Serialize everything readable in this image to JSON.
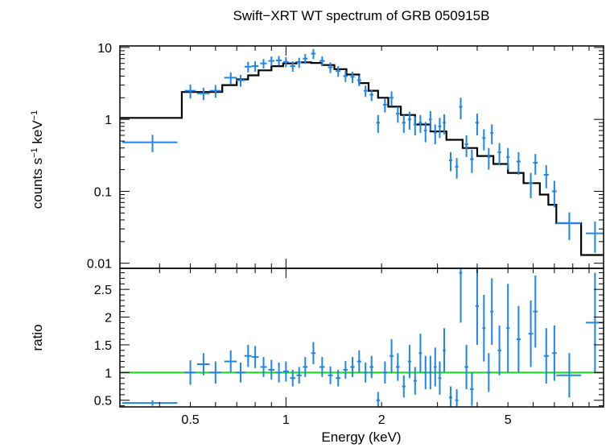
{
  "chart_data": {
    "type": "scatter",
    "title": "Swift−XRT WT spectrum of GRB 050915B",
    "xlabel": "Energy (keV)",
    "x_scale": "log",
    "xlim": [
      0.3,
      10
    ],
    "x_ticks": [
      "0.5",
      "1",
      "2",
      "5"
    ],
    "x_tick_values": [
      0.5,
      1,
      2,
      5
    ],
    "colors": {
      "data": "#1f86e8",
      "model": "#000000",
      "unity": "#22dd22",
      "frame": "#000000"
    },
    "panels": [
      {
        "name": "spectrum",
        "ylabel_main": "counts s",
        "ylabel_exp1": "−1",
        "ylabel_mid": " keV",
        "ylabel_exp2": "−1",
        "y_scale": "log",
        "ylim": [
          0.0085,
          10.5
        ],
        "y_ticks": [
          "0.01",
          "0.1",
          "1",
          "10"
        ],
        "y_tick_values": [
          0.01,
          0.1,
          1,
          10
        ],
        "model_steps": [
          [
            0.3,
            1.05
          ],
          [
            0.47,
            2.4
          ],
          [
            0.56,
            2.4
          ],
          [
            0.63,
            3.0
          ],
          [
            0.7,
            3.6
          ],
          [
            0.76,
            4.1
          ],
          [
            0.82,
            4.8
          ],
          [
            0.9,
            5.5
          ],
          [
            0.98,
            6.0
          ],
          [
            1.08,
            6.2
          ],
          [
            1.2,
            6.1
          ],
          [
            1.3,
            5.7
          ],
          [
            1.42,
            5.0
          ],
          [
            1.55,
            4.2
          ],
          [
            1.7,
            3.2
          ],
          [
            1.82,
            2.5
          ],
          [
            1.95,
            2.0
          ],
          [
            2.1,
            1.5
          ],
          [
            2.3,
            1.15
          ],
          [
            2.55,
            0.85
          ],
          [
            2.85,
            0.68
          ],
          [
            3.2,
            0.52
          ],
          [
            3.6,
            0.4
          ],
          [
            4.0,
            0.31
          ],
          [
            4.5,
            0.24
          ],
          [
            5.0,
            0.18
          ],
          [
            5.6,
            0.13
          ],
          [
            6.3,
            0.09
          ],
          [
            6.7,
            0.065
          ],
          [
            7.1,
            0.036
          ],
          [
            8.5,
            0.013
          ],
          [
            10,
            0.013
          ]
        ],
        "points": [
          [
            0.38,
            0.48,
            0.075,
            0.13
          ],
          [
            0.5,
            2.5,
            0.02,
            0.55
          ],
          [
            0.55,
            2.3,
            0.025,
            0.45
          ],
          [
            0.6,
            2.5,
            0.025,
            0.5
          ],
          [
            0.67,
            3.8,
            0.03,
            0.7
          ],
          [
            0.72,
            3.5,
            0.025,
            0.65
          ],
          [
            0.76,
            5.4,
            0.02,
            0.9
          ],
          [
            0.8,
            5.5,
            0.02,
            0.9
          ],
          [
            0.85,
            6.0,
            0.02,
            0.9
          ],
          [
            0.9,
            6.5,
            0.02,
            1.0
          ],
          [
            0.95,
            6.6,
            0.02,
            1.0
          ],
          [
            1.0,
            6.3,
            0.02,
            1.0
          ],
          [
            1.05,
            5.5,
            0.02,
            0.9
          ],
          [
            1.1,
            6.2,
            0.02,
            1.0
          ],
          [
            1.15,
            7.0,
            0.02,
            1.1
          ],
          [
            1.22,
            8.2,
            0.02,
            1.3
          ],
          [
            1.3,
            6.5,
            0.025,
            1.0
          ],
          [
            1.38,
            5.3,
            0.025,
            0.9
          ],
          [
            1.46,
            4.7,
            0.025,
            0.8
          ],
          [
            1.54,
            4.0,
            0.025,
            0.7
          ],
          [
            1.62,
            3.9,
            0.025,
            0.7
          ],
          [
            1.7,
            3.5,
            0.025,
            0.6
          ],
          [
            1.78,
            2.5,
            0.025,
            0.45
          ],
          [
            1.86,
            2.2,
            0.025,
            0.4
          ],
          [
            1.95,
            0.9,
            0.025,
            0.25
          ],
          [
            2.05,
            1.6,
            0.03,
            0.35
          ],
          [
            2.15,
            2.0,
            0.03,
            0.45
          ],
          [
            2.25,
            1.2,
            0.03,
            0.3
          ],
          [
            2.35,
            0.9,
            0.03,
            0.25
          ],
          [
            2.45,
            1.0,
            0.03,
            0.28
          ],
          [
            2.55,
            0.85,
            0.03,
            0.25
          ],
          [
            2.65,
            0.9,
            0.03,
            0.25
          ],
          [
            2.75,
            0.7,
            0.03,
            0.22
          ],
          [
            2.85,
            1.0,
            0.03,
            0.3
          ],
          [
            2.95,
            0.65,
            0.03,
            0.2
          ],
          [
            3.05,
            0.8,
            0.035,
            0.25
          ],
          [
            3.15,
            0.9,
            0.035,
            0.28
          ],
          [
            3.3,
            0.27,
            0.04,
            0.08
          ],
          [
            3.45,
            0.22,
            0.04,
            0.07
          ],
          [
            3.55,
            1.5,
            0.04,
            0.5
          ],
          [
            3.7,
            0.45,
            0.05,
            0.15
          ],
          [
            3.85,
            0.28,
            0.05,
            0.1
          ],
          [
            4.0,
            0.9,
            0.05,
            0.3
          ],
          [
            4.2,
            0.55,
            0.05,
            0.18
          ],
          [
            4.35,
            0.3,
            0.05,
            0.1
          ],
          [
            4.45,
            0.65,
            0.05,
            0.2
          ],
          [
            4.7,
            0.35,
            0.06,
            0.12
          ],
          [
            5.0,
            0.3,
            0.06,
            0.1
          ],
          [
            5.4,
            0.26,
            0.08,
            0.09
          ],
          [
            5.9,
            0.13,
            0.1,
            0.05
          ],
          [
            6.1,
            0.25,
            0.1,
            0.08
          ],
          [
            6.6,
            0.17,
            0.12,
            0.06
          ],
          [
            7.0,
            0.1,
            0.12,
            0.04
          ],
          [
            7.8,
            0.036,
            0.7,
            0.015
          ],
          [
            9.4,
            0.026,
            0.6,
            0.012
          ]
        ]
      },
      {
        "name": "ratio",
        "ylabel_main": "ratio",
        "y_scale": "linear",
        "ylim": [
          0.38,
          2.88
        ],
        "y_ticks": [
          "0.5",
          "1",
          "1.5",
          "2",
          "2.5"
        ],
        "y_tick_values": [
          0.5,
          1,
          1.5,
          2,
          2.5
        ],
        "unity_line": 1,
        "points": [
          [
            0.38,
            0.45,
            0.075,
            0.05
          ],
          [
            0.5,
            1.0,
            0.02,
            0.22
          ],
          [
            0.55,
            1.15,
            0.025,
            0.2
          ],
          [
            0.6,
            1.0,
            0.025,
            0.2
          ],
          [
            0.67,
            1.2,
            0.03,
            0.2
          ],
          [
            0.72,
            1.0,
            0.025,
            0.18
          ],
          [
            0.76,
            1.3,
            0.02,
            0.2
          ],
          [
            0.8,
            1.28,
            0.02,
            0.2
          ],
          [
            0.85,
            1.1,
            0.02,
            0.18
          ],
          [
            0.9,
            1.05,
            0.02,
            0.18
          ],
          [
            0.95,
            1.0,
            0.02,
            0.18
          ],
          [
            1.0,
            1.02,
            0.02,
            0.18
          ],
          [
            1.05,
            0.9,
            0.02,
            0.15
          ],
          [
            1.1,
            0.95,
            0.02,
            0.15
          ],
          [
            1.15,
            1.1,
            0.02,
            0.18
          ],
          [
            1.22,
            1.35,
            0.02,
            0.2
          ],
          [
            1.3,
            1.1,
            0.025,
            0.18
          ],
          [
            1.38,
            0.95,
            0.025,
            0.16
          ],
          [
            1.46,
            0.9,
            0.025,
            0.15
          ],
          [
            1.54,
            1.05,
            0.025,
            0.16
          ],
          [
            1.62,
            1.1,
            0.025,
            0.18
          ],
          [
            1.7,
            1.2,
            0.025,
            0.2
          ],
          [
            1.78,
            1.0,
            0.025,
            0.18
          ],
          [
            1.86,
            1.1,
            0.025,
            0.2
          ],
          [
            1.95,
            0.5,
            0.025,
            0.15
          ],
          [
            2.05,
            1.0,
            0.03,
            0.2
          ],
          [
            2.15,
            1.3,
            0.03,
            0.3
          ],
          [
            2.25,
            1.1,
            0.03,
            0.25
          ],
          [
            2.35,
            0.75,
            0.03,
            0.2
          ],
          [
            2.45,
            1.2,
            0.03,
            0.3
          ],
          [
            2.55,
            0.85,
            0.03,
            0.25
          ],
          [
            2.65,
            1.35,
            0.03,
            0.35
          ],
          [
            2.75,
            1.0,
            0.03,
            0.3
          ],
          [
            2.85,
            1.0,
            0.03,
            0.3
          ],
          [
            2.95,
            1.1,
            0.03,
            0.35
          ],
          [
            3.05,
            0.9,
            0.035,
            0.3
          ],
          [
            3.15,
            1.4,
            0.035,
            0.4
          ],
          [
            3.3,
            0.55,
            0.04,
            0.2
          ],
          [
            3.45,
            0.5,
            0.04,
            0.2
          ],
          [
            3.55,
            2.8,
            0.04,
            0.9
          ],
          [
            3.7,
            1.1,
            0.05,
            0.4
          ],
          [
            3.85,
            0.7,
            0.05,
            0.3
          ],
          [
            4.0,
            2.2,
            0.05,
            0.7
          ],
          [
            4.2,
            1.8,
            0.05,
            0.6
          ],
          [
            4.35,
            1.0,
            0.05,
            0.35
          ],
          [
            4.45,
            2.1,
            0.05,
            0.6
          ],
          [
            4.7,
            1.4,
            0.06,
            0.45
          ],
          [
            5.0,
            1.8,
            0.06,
            0.8
          ],
          [
            5.4,
            1.6,
            0.08,
            0.6
          ],
          [
            5.9,
            1.7,
            0.1,
            0.6
          ],
          [
            6.1,
            2.1,
            0.1,
            0.65
          ],
          [
            6.6,
            1.3,
            0.12,
            0.5
          ],
          [
            7.0,
            1.35,
            0.12,
            0.5
          ],
          [
            7.8,
            0.95,
            0.7,
            0.4
          ],
          [
            9.4,
            1.9,
            0.6,
            0.9
          ]
        ]
      }
    ]
  }
}
